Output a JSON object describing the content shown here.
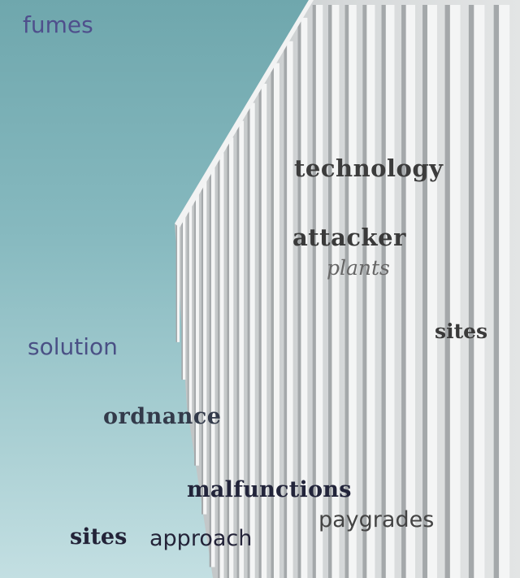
{
  "words": {
    "fumes": "fumes",
    "technology": "technology",
    "attacker": "attacker",
    "plants": "plants",
    "sites_upper": "sites",
    "solution": "solution",
    "ordnance": "ordnance",
    "malfunctions": "malfunctions",
    "paygrades": "paygrades",
    "sites_lower": "sites",
    "approach": "approach"
  },
  "colors": {
    "sky_top": "#6fa7ad",
    "sky_bottom": "#c3dfe2",
    "facade": "#d9dcdc",
    "fin_light": "#f4f5f5",
    "fin_shadow": "#a4a8aa"
  }
}
